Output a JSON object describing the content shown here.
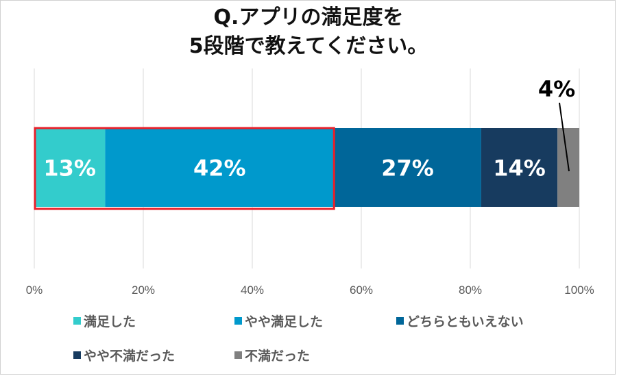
{
  "chart_data": {
    "type": "bar",
    "orientation": "horizontal-stacked-100",
    "title_lines": [
      "Q.アプリの満足度を",
      "5段階で教えてください。"
    ],
    "categories": [
      ""
    ],
    "series": [
      {
        "name": "満足した",
        "values": [
          13
        ],
        "label": "13%",
        "color": "#33CCCC"
      },
      {
        "name": "やや満足した",
        "values": [
          42
        ],
        "label": "42%",
        "color": "#0099CC"
      },
      {
        "name": "どちらともいえない",
        "values": [
          27
        ],
        "label": "27%",
        "color": "#006699"
      },
      {
        "name": "やや不満だった",
        "values": [
          14
        ],
        "label": "14%",
        "color": "#173B5F"
      },
      {
        "name": "不満だった",
        "values": [
          4
        ],
        "label": "4%",
        "color": "#808080"
      }
    ],
    "xlim": [
      0,
      100
    ],
    "x_ticks": [
      "0%",
      "20%",
      "40%",
      "60%",
      "80%",
      "100%"
    ],
    "grid": true,
    "legend_position": "bottom",
    "highlight": {
      "series": [
        "満足した",
        "やや満足した"
      ],
      "color": "#E8202A"
    }
  }
}
